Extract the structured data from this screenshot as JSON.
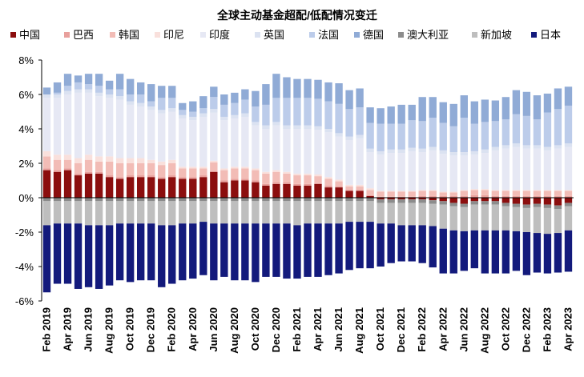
{
  "chart_data": {
    "type": "bar",
    "stacked": true,
    "title": "全球主动基金超配/低配情况变迁",
    "xlabel": "",
    "ylabel": "",
    "ylim": [
      -6,
      8
    ],
    "y_ticks": [
      "-6%",
      "-4%",
      "-2%",
      "0%",
      "2%",
      "4%",
      "6%",
      "8%"
    ],
    "y_tick_values": [
      -6,
      -4,
      -2,
      0,
      2,
      4,
      6,
      8
    ],
    "grid": false,
    "legend_position": "top",
    "categories": [
      "Feb 2019",
      "Mar 2019",
      "Apr 2019",
      "May 2019",
      "Jun 2019",
      "Jul 2019",
      "Aug 2019",
      "Sep 2019",
      "Oct 2019",
      "Nov 2019",
      "Dec 2019",
      "Jan 2020",
      "Feb 2020",
      "Mar 2020",
      "Apr 2020",
      "May 2020",
      "Jun 2020",
      "Jul 2020",
      "Aug 2020",
      "Sep 2020",
      "Oct 2020",
      "Nov 2020",
      "Dec 2020",
      "Jan 2021",
      "Feb 2021",
      "Mar 2021",
      "Apr 2021",
      "May 2021",
      "Jun 2021",
      "Jul 2021",
      "Aug 2021",
      "Sep 2021",
      "Oct 2021",
      "Nov 2021",
      "Dec 2021",
      "Jan 2022",
      "Feb 2022",
      "Mar 2022",
      "Apr 2022",
      "May 2022",
      "Jun 2022",
      "Jul 2022",
      "Aug 2022",
      "Sep 2022",
      "Oct 2022",
      "Nov 2022",
      "Dec 2022",
      "Jan 2023",
      "Feb 2023",
      "Mar 2023",
      "Apr 2023"
    ],
    "x_tick_labels": [
      "Feb 2019",
      "Apr 2019",
      "Jun 2019",
      "Aug 2019",
      "Oct 2019",
      "Dec 2019",
      "Feb 2020",
      "Apr 2020",
      "Jun 2020",
      "Aug 2020",
      "Oct 2020",
      "Dec 2020",
      "Feb 2021",
      "Apr 2021",
      "Jun 2021",
      "Aug 2021",
      "Oct 2021",
      "Dec 2021",
      "Feb 2022",
      "Apr 2022",
      "Jun 2022",
      "Aug 2022",
      "Oct 2022",
      "Dec 2022",
      "Feb 2023",
      "Apr 2023"
    ],
    "series": [
      {
        "name": "中国",
        "color": "#8b0e0e",
        "values": [
          1.6,
          1.5,
          1.6,
          1.3,
          1.4,
          1.4,
          1.2,
          1.1,
          1.2,
          1.2,
          1.2,
          1.1,
          1.2,
          1.1,
          1.1,
          1.2,
          1.5,
          0.9,
          1.0,
          1.0,
          0.9,
          0.7,
          0.8,
          0.8,
          0.7,
          0.7,
          0.8,
          0.6,
          0.6,
          0.4,
          0.4,
          0.1,
          -0.1,
          -0.1,
          -0.1,
          -0.1,
          -0.1,
          -0.15,
          -0.2,
          -0.3,
          -0.35,
          -0.2,
          -0.2,
          -0.2,
          -0.3,
          -0.35,
          -0.4,
          -0.35,
          -0.4,
          -0.45,
          -0.3
        ]
      },
      {
        "name": "巴西",
        "color": "#e8a09c",
        "values": [
          0.1,
          0.1,
          0.1,
          0.1,
          0.1,
          0.1,
          0.1,
          0.1,
          0.1,
          0.1,
          0.1,
          0.1,
          0.1,
          0.1,
          0.1,
          0.1,
          0.05,
          0.1,
          0.1,
          0.1,
          0.1,
          0.1,
          0.1,
          0.1,
          0.1,
          0.1,
          0.05,
          0.1,
          0.05,
          0.05,
          0.05,
          0.05,
          0.05,
          0.05,
          0.05,
          0.05,
          0.1,
          0.1,
          0.1,
          0.1,
          0.1,
          0.15,
          0.15,
          0.1,
          0.1,
          0.1,
          0.1,
          0.1,
          0.1,
          0.1,
          0.1
        ]
      },
      {
        "name": "韩国",
        "color": "#f2bcb6",
        "values": [
          0.7,
          0.6,
          0.5,
          0.6,
          0.7,
          0.6,
          0.8,
          0.8,
          0.7,
          0.7,
          0.7,
          0.7,
          0.7,
          0.5,
          0.5,
          0.4,
          0.5,
          0.6,
          0.6,
          0.6,
          0.6,
          0.6,
          0.6,
          0.5,
          0.5,
          0.5,
          0.4,
          0.4,
          0.3,
          0.2,
          0.2,
          0.3,
          0.3,
          0.3,
          0.3,
          0.3,
          0.3,
          0.3,
          0.2,
          0.2,
          0.3,
          0.3,
          0.3,
          0.3,
          0.3,
          0.3,
          0.3,
          0.3,
          0.3,
          0.3,
          0.3
        ]
      },
      {
        "name": "印尼",
        "color": "#f9e0dc",
        "values": [
          0.3,
          0.3,
          0.3,
          0.3,
          0.3,
          0.3,
          0.3,
          0.3,
          0.3,
          0.3,
          0.2,
          0.2,
          0.2,
          0.1,
          0.1,
          0.1,
          0.1,
          0.1,
          0.1,
          0.1,
          0.1,
          0.1,
          0.1,
          0.1,
          0.1,
          0.1,
          0.1,
          0.1,
          0.1,
          0.1,
          0.1,
          0.1,
          0.05,
          0.05,
          0.05,
          0.05,
          0.05,
          0.05,
          0.05,
          0.05,
          0.05,
          0.05,
          0.05,
          0.05,
          0.05,
          0.05,
          0.05,
          0.05,
          0.05,
          0.05,
          0.05
        ]
      },
      {
        "name": "印度",
        "color": "#e6e8f4",
        "values": [
          3.1,
          3.3,
          3.5,
          3.8,
          3.6,
          3.5,
          3.4,
          3.4,
          3.1,
          3.0,
          2.9,
          2.8,
          2.8,
          2.8,
          2.7,
          2.9,
          2.8,
          2.8,
          2.8,
          2.9,
          2.5,
          2.5,
          2.6,
          2.5,
          2.6,
          2.6,
          2.6,
          2.6,
          2.5,
          2.6,
          2.7,
          2.1,
          2.1,
          2.2,
          2.2,
          2.3,
          2.2,
          2.3,
          2.2,
          2.1,
          2.0,
          2.0,
          2.1,
          2.3,
          2.4,
          2.5,
          2.4,
          2.4,
          2.3,
          2.4,
          2.5
        ]
      },
      {
        "name": "英国",
        "color": "#dbe2f1",
        "values": [
          0.2,
          0.2,
          0.2,
          0.2,
          0.2,
          0.2,
          0.2,
          0.2,
          0.2,
          0.2,
          0.2,
          0.2,
          0.2,
          0.2,
          0.2,
          0.2,
          0.2,
          0.2,
          0.2,
          0.2,
          0.2,
          0.2,
          0.2,
          0.2,
          0.2,
          0.2,
          0.2,
          0.2,
          0.2,
          0.2,
          0.2,
          0.2,
          0.2,
          0.2,
          0.2,
          0.2,
          0.2,
          0.2,
          0.2,
          0.2,
          0.2,
          0.2,
          0.2,
          0.2,
          0.2,
          0.2,
          0.2,
          0.2,
          0.2,
          0.2,
          0.2
        ]
      },
      {
        "name": "法国",
        "color": "#bcccea",
        "values": [
          0.0,
          0.1,
          0.3,
          0.4,
          0.3,
          0.4,
          0.3,
          0.4,
          0.4,
          0.5,
          0.3,
          0.7,
          0.6,
          0.3,
          0.3,
          0.3,
          0.7,
          0.7,
          0.7,
          0.8,
          0.9,
          1.2,
          1.4,
          1.6,
          1.6,
          1.6,
          1.6,
          1.6,
          1.7,
          1.6,
          1.6,
          1.5,
          1.6,
          1.5,
          1.5,
          1.6,
          1.6,
          1.7,
          1.6,
          1.5,
          2.0,
          1.6,
          1.6,
          1.5,
          1.5,
          1.7,
          1.7,
          1.5,
          2.0,
          2.1,
          2.2
        ]
      },
      {
        "name": "德国",
        "color": "#90abd6",
        "values": [
          0.4,
          0.6,
          0.7,
          0.4,
          0.6,
          0.7,
          0.5,
          0.9,
          0.9,
          0.7,
          1.0,
          0.7,
          0.7,
          0.4,
          0.6,
          0.7,
          0.6,
          0.6,
          0.6,
          0.6,
          0.9,
          1.2,
          1.4,
          1.2,
          1.1,
          1.1,
          1.1,
          1.1,
          1.2,
          1.1,
          1.1,
          0.9,
          0.9,
          1.0,
          1.1,
          0.9,
          1.4,
          1.2,
          1.2,
          1.3,
          1.3,
          1.3,
          1.3,
          1.2,
          1.3,
          1.4,
          1.4,
          1.4,
          1.1,
          1.2,
          1.1
        ]
      },
      {
        "name": "澳大利亚",
        "color": "#8c8c8c",
        "values": [
          -0.2,
          -0.2,
          -0.2,
          -0.2,
          -0.2,
          -0.2,
          -0.2,
          -0.2,
          -0.2,
          -0.2,
          -0.2,
          -0.2,
          -0.2,
          -0.2,
          -0.2,
          -0.2,
          -0.2,
          -0.2,
          -0.2,
          -0.2,
          -0.2,
          -0.2,
          -0.2,
          -0.2,
          -0.2,
          -0.2,
          -0.2,
          -0.2,
          -0.2,
          -0.2,
          -0.2,
          -0.2,
          -0.2,
          -0.2,
          -0.2,
          -0.2,
          -0.2,
          -0.2,
          -0.2,
          -0.2,
          -0.2,
          -0.2,
          -0.2,
          -0.2,
          -0.2,
          -0.2,
          -0.2,
          -0.2,
          -0.2,
          -0.2,
          -0.2
        ]
      },
      {
        "name": "新加坡",
        "color": "#bebebe",
        "values": [
          -1.4,
          -1.3,
          -1.3,
          -1.3,
          -1.4,
          -1.4,
          -1.4,
          -1.3,
          -1.3,
          -1.3,
          -1.3,
          -1.4,
          -1.4,
          -1.3,
          -1.3,
          -1.2,
          -1.3,
          -1.3,
          -1.3,
          -1.3,
          -1.3,
          -1.3,
          -1.3,
          -1.3,
          -1.4,
          -1.3,
          -1.3,
          -1.3,
          -1.3,
          -1.2,
          -1.2,
          -1.2,
          -1.2,
          -1.2,
          -1.3,
          -1.3,
          -1.3,
          -1.3,
          -1.4,
          -1.4,
          -1.4,
          -1.5,
          -1.5,
          -1.5,
          -1.4,
          -1.4,
          -1.4,
          -1.5,
          -1.5,
          -1.4,
          -1.4
        ]
      },
      {
        "name": "日本",
        "color": "#131a7c",
        "values": [
          -3.9,
          -3.5,
          -3.5,
          -3.8,
          -3.6,
          -3.7,
          -3.5,
          -3.3,
          -3.4,
          -3.3,
          -3.3,
          -3.6,
          -3.4,
          -3.3,
          -3.2,
          -3.1,
          -3.3,
          -3.1,
          -3.3,
          -3.3,
          -3.4,
          -3.1,
          -3.1,
          -3.2,
          -3.1,
          -3.1,
          -3.1,
          -3.0,
          -2.9,
          -2.8,
          -2.7,
          -2.7,
          -2.5,
          -2.3,
          -2.1,
          -2.1,
          -2.2,
          -2.4,
          -2.6,
          -2.5,
          -2.3,
          -2.2,
          -2.5,
          -2.5,
          -2.5,
          -2.3,
          -2.5,
          -2.3,
          -2.3,
          -2.3,
          -2.4
        ]
      }
    ]
  }
}
